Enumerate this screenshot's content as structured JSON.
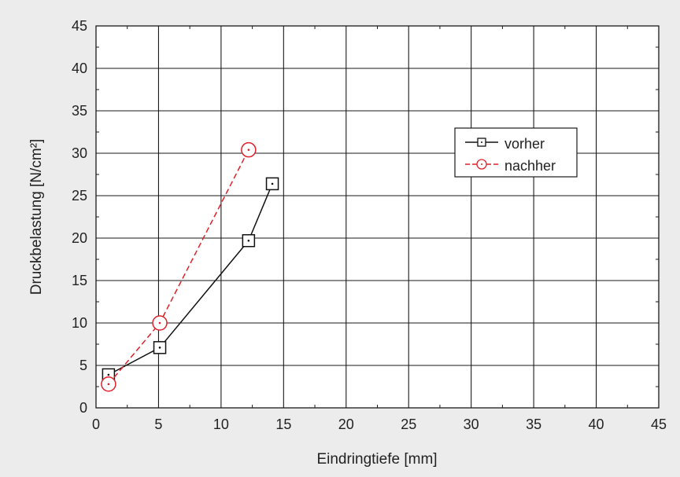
{
  "chart_data": {
    "type": "line",
    "title": "",
    "xlabel": "Eindringtiefe [mm]",
    "ylabel": "Druckbelastung [N/cm²]",
    "xlim": [
      0,
      45
    ],
    "ylim": [
      0,
      45
    ],
    "xticks": [
      0,
      5,
      10,
      15,
      20,
      25,
      30,
      35,
      40,
      45
    ],
    "yticks": [
      0,
      5,
      10,
      15,
      20,
      25,
      30,
      35,
      40,
      45
    ],
    "grid": true,
    "legend_position": "right",
    "series": [
      {
        "name": "vorher",
        "color": "#111111",
        "line_style": "solid",
        "marker": "square-dot",
        "x": [
          1.0,
          5.1,
          12.2,
          14.1
        ],
        "y": [
          3.9,
          7.1,
          19.7,
          26.4
        ]
      },
      {
        "name": "nachher",
        "color": "#e0202a",
        "line_style": "dashed",
        "marker": "circle-dot",
        "x": [
          1.0,
          5.1,
          12.2
        ],
        "y": [
          2.8,
          10.0,
          30.4
        ]
      }
    ]
  },
  "colors": {
    "background": "#ececec",
    "plot_background": "#ffffff",
    "grid": "#1a1a1a"
  }
}
